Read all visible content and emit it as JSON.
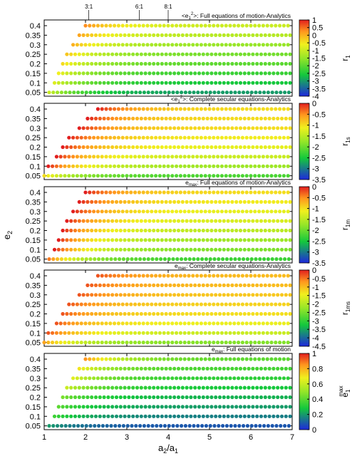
{
  "figure": {
    "ylabel_base": "e",
    "ylabel_sub": "2",
    "xlabel_base": "a",
    "xlabel_sub1": "2",
    "xlabel_sep": "/a",
    "xlabel_sub2": "1",
    "top_ticks": [
      "3:1",
      "6:1",
      "8:1"
    ],
    "top_tick_x": [
      2.08,
      3.3,
      4.0
    ]
  },
  "chart_data": [
    {
      "type": "scatter",
      "panel": 1,
      "title": "<e1²>: Full equations of motion-Analytics",
      "title_parts": [
        "<e",
        "1",
        "2",
        ">: Full equations of motion-Analytics"
      ],
      "colorbar_label": "r",
      "colorbar_sub": "1",
      "colorbar_ticks": [
        "1",
        "0.5",
        "0",
        "-0.5",
        "-1",
        "-1.5",
        "-2",
        "-2.5",
        "-3",
        "-3.5",
        "-4"
      ],
      "colorbar_range": [
        -4,
        1
      ],
      "colormap": "red-yellow-green-blue",
      "xlim": [
        1,
        7
      ],
      "ylim": [
        0.03,
        0.43
      ],
      "y_ticks": [
        "0.4",
        "0.35",
        "0.3",
        "0.25",
        "0.2",
        "0.15",
        "0.1",
        "0.05"
      ],
      "rows": [
        {
          "e2": 0.4,
          "a_start": 2.0,
          "values": {
            "base": -1.0,
            "edge": 0.3
          }
        },
        {
          "e2": 0.35,
          "a_start": 1.85,
          "values": {
            "base": -1.2,
            "edge": 0.1
          }
        },
        {
          "e2": 0.3,
          "a_start": 1.7,
          "values": {
            "base": -1.5,
            "edge": 0.0
          }
        },
        {
          "e2": 0.25,
          "a_start": 1.55,
          "values": {
            "base": -1.8,
            "edge": -0.2
          }
        },
        {
          "e2": 0.2,
          "a_start": 1.45,
          "values": {
            "base": -2.0,
            "edge": -0.4
          }
        },
        {
          "e2": 0.15,
          "a_start": 1.35,
          "values": {
            "base": -2.3,
            "edge": -0.6
          }
        },
        {
          "e2": 0.1,
          "a_start": 1.25,
          "values": {
            "base": -2.6,
            "edge": -0.8
          }
        },
        {
          "e2": 0.05,
          "a_start": 1.12,
          "values": {
            "base": -3.0,
            "edge": -1.0
          }
        }
      ]
    },
    {
      "type": "scatter",
      "panel": 2,
      "title": "<e1²>: Complete secular equations-Analytics",
      "title_parts": [
        "<e",
        "1",
        "2",
        ">: Complete secular equations-Analytics"
      ],
      "colorbar_label": "r",
      "colorbar_sub": "1s",
      "colorbar_ticks": [
        "0",
        "-0.5",
        "-1",
        "-1.5",
        "-2",
        "-2.5",
        "-3",
        "-3.5"
      ],
      "colorbar_range": [
        -3.5,
        0
      ],
      "colormap": "red-yellow-green-blue",
      "xlim": [
        1,
        7
      ],
      "ylim": [
        0.03,
        0.43
      ],
      "y_ticks": [
        "0.4",
        "0.35",
        "0.3",
        "0.25",
        "0.2",
        "0.15",
        "0.1",
        "0.05"
      ],
      "rows": [
        {
          "e2": 0.4,
          "a_start": 2.3,
          "values": {
            "base": -1.0,
            "edge": 0.0
          }
        },
        {
          "e2": 0.35,
          "a_start": 2.05,
          "values": {
            "base": -1.0,
            "edge": 0.0
          }
        },
        {
          "e2": 0.3,
          "a_start": 1.85,
          "values": {
            "base": -1.0,
            "edge": 0.0
          }
        },
        {
          "e2": 0.25,
          "a_start": 1.6,
          "values": {
            "base": -1.1,
            "edge": 0.0
          }
        },
        {
          "e2": 0.2,
          "a_start": 1.45,
          "values": {
            "base": -1.2,
            "edge": 0.0
          }
        },
        {
          "e2": 0.15,
          "a_start": 1.3,
          "values": {
            "base": -1.4,
            "edge": 0.0
          }
        },
        {
          "e2": 0.1,
          "a_start": 1.1,
          "values": {
            "base": -1.7,
            "edge": 0.0
          }
        },
        {
          "e2": 0.05,
          "a_start": 1.0,
          "values": {
            "base": -2.2,
            "edge": -1.0
          }
        }
      ]
    },
    {
      "type": "scatter",
      "panel": 3,
      "title": "emax: Full equations of motion-Analytics",
      "title_parts": [
        "e",
        "max",
        ": Full equations of motion-Analytics"
      ],
      "colorbar_label": "r",
      "colorbar_sub": "1m",
      "colorbar_ticks": [
        "0",
        "-0.5",
        "-1",
        "-1.5",
        "-2",
        "-2.5",
        "-3",
        "-3.5"
      ],
      "colorbar_range": [
        -3.5,
        0
      ],
      "colormap": "red-yellow-green-blue",
      "xlim": [
        1,
        7
      ],
      "ylim": [
        0.03,
        0.43
      ],
      "y_ticks": [
        "0.4",
        "0.35",
        "0.3",
        "0.25",
        "0.2",
        "0.15",
        "0.1",
        "0.05"
      ],
      "rows": [
        {
          "e2": 0.4,
          "a_start": 2.0,
          "values": {
            "base": -1.0,
            "edge": 0.0
          }
        },
        {
          "e2": 0.35,
          "a_start": 1.85,
          "values": {
            "base": -1.1,
            "edge": 0.0
          }
        },
        {
          "e2": 0.3,
          "a_start": 1.7,
          "values": {
            "base": -1.2,
            "edge": 0.0
          }
        },
        {
          "e2": 0.25,
          "a_start": 1.55,
          "values": {
            "base": -1.3,
            "edge": 0.0
          }
        },
        {
          "e2": 0.2,
          "a_start": 1.45,
          "values": {
            "base": -1.5,
            "edge": 0.0
          }
        },
        {
          "e2": 0.15,
          "a_start": 1.35,
          "values": {
            "base": -1.7,
            "edge": 0.0
          }
        },
        {
          "e2": 0.1,
          "a_start": 1.25,
          "values": {
            "base": -1.9,
            "edge": 0.0
          }
        },
        {
          "e2": 0.05,
          "a_start": 1.12,
          "values": {
            "base": -2.3,
            "edge": -0.4
          }
        }
      ]
    },
    {
      "type": "scatter",
      "panel": 4,
      "title": "emax: Complete secular equations-Analytics",
      "title_parts": [
        "e",
        "max",
        ": Complete secular equations-Analytics"
      ],
      "colorbar_label": "r",
      "colorbar_sub": "1ms",
      "colorbar_ticks": [
        "0",
        "-0.5",
        "-1",
        "-1.5",
        "-2",
        "-2.5",
        "-3",
        "-3.5",
        "-4",
        "-4.5"
      ],
      "colorbar_range": [
        -4.5,
        0
      ],
      "colormap": "red-yellow-green-blue",
      "xlim": [
        1,
        7
      ],
      "ylim": [
        0.03,
        0.43
      ],
      "y_ticks": [
        "0.4",
        "0.35",
        "0.3",
        "0.25",
        "0.2",
        "0.15",
        "0.1",
        "0.05"
      ],
      "rows": [
        {
          "e2": 0.4,
          "a_start": 2.3,
          "values": {
            "base": -1.0,
            "edge": -0.3
          }
        },
        {
          "e2": 0.35,
          "a_start": 2.05,
          "values": {
            "base": -1.0,
            "edge": -0.3
          }
        },
        {
          "e2": 0.3,
          "a_start": 1.85,
          "values": {
            "base": -1.1,
            "edge": -0.3
          }
        },
        {
          "e2": 0.25,
          "a_start": 1.6,
          "values": {
            "base": -1.2,
            "edge": -0.3
          }
        },
        {
          "e2": 0.2,
          "a_start": 1.45,
          "values": {
            "base": -1.3,
            "edge": -0.3
          }
        },
        {
          "e2": 0.15,
          "a_start": 1.3,
          "values": {
            "base": -1.5,
            "edge": -0.3
          }
        },
        {
          "e2": 0.1,
          "a_start": 1.1,
          "values": {
            "base": -1.8,
            "edge": -0.3
          }
        },
        {
          "e2": 0.05,
          "a_start": 1.0,
          "values": {
            "base": -2.4,
            "edge": -0.8
          }
        }
      ]
    },
    {
      "type": "scatter",
      "panel": 5,
      "title": "emax: Full equations of motion",
      "title_parts": [
        "e",
        "max",
        ": Full equations of motion"
      ],
      "colorbar_label": "e",
      "colorbar_sub": "1",
      "colorbar_sup": "max",
      "colorbar_ticks": [
        "1",
        "0.8",
        "0.6",
        "0.4",
        "0.2",
        "0"
      ],
      "colorbar_range": [
        0,
        1
      ],
      "colormap": "red-yellow-green-blue",
      "xlim": [
        1,
        7
      ],
      "ylim": [
        0.03,
        0.43
      ],
      "y_ticks": [
        "0.4",
        "0.35",
        "0.3",
        "0.25",
        "0.2",
        "0.15",
        "0.1",
        "0.05"
      ],
      "x_ticks": [
        "1",
        "2",
        "3",
        "4",
        "5",
        "6",
        "7"
      ],
      "rows": [
        {
          "e2": 0.4,
          "a_start": 2.0,
          "values": {
            "base": 0.4,
            "edge": 0.85
          }
        },
        {
          "e2": 0.35,
          "a_start": 1.85,
          "values": {
            "base": 0.36,
            "edge": 0.7
          }
        },
        {
          "e2": 0.3,
          "a_start": 1.7,
          "values": {
            "base": 0.32,
            "edge": 0.65
          }
        },
        {
          "e2": 0.25,
          "a_start": 1.55,
          "values": {
            "base": 0.28,
            "edge": 0.6
          }
        },
        {
          "e2": 0.2,
          "a_start": 1.45,
          "values": {
            "base": 0.24,
            "edge": 0.45
          }
        },
        {
          "e2": 0.15,
          "a_start": 1.35,
          "values": {
            "base": 0.2,
            "edge": 0.4
          }
        },
        {
          "e2": 0.1,
          "a_start": 1.25,
          "values": {
            "base": 0.15,
            "edge": 0.35
          }
        },
        {
          "e2": 0.05,
          "a_start": 1.12,
          "values": {
            "base": 0.08,
            "edge": 0.2
          }
        }
      ]
    }
  ]
}
